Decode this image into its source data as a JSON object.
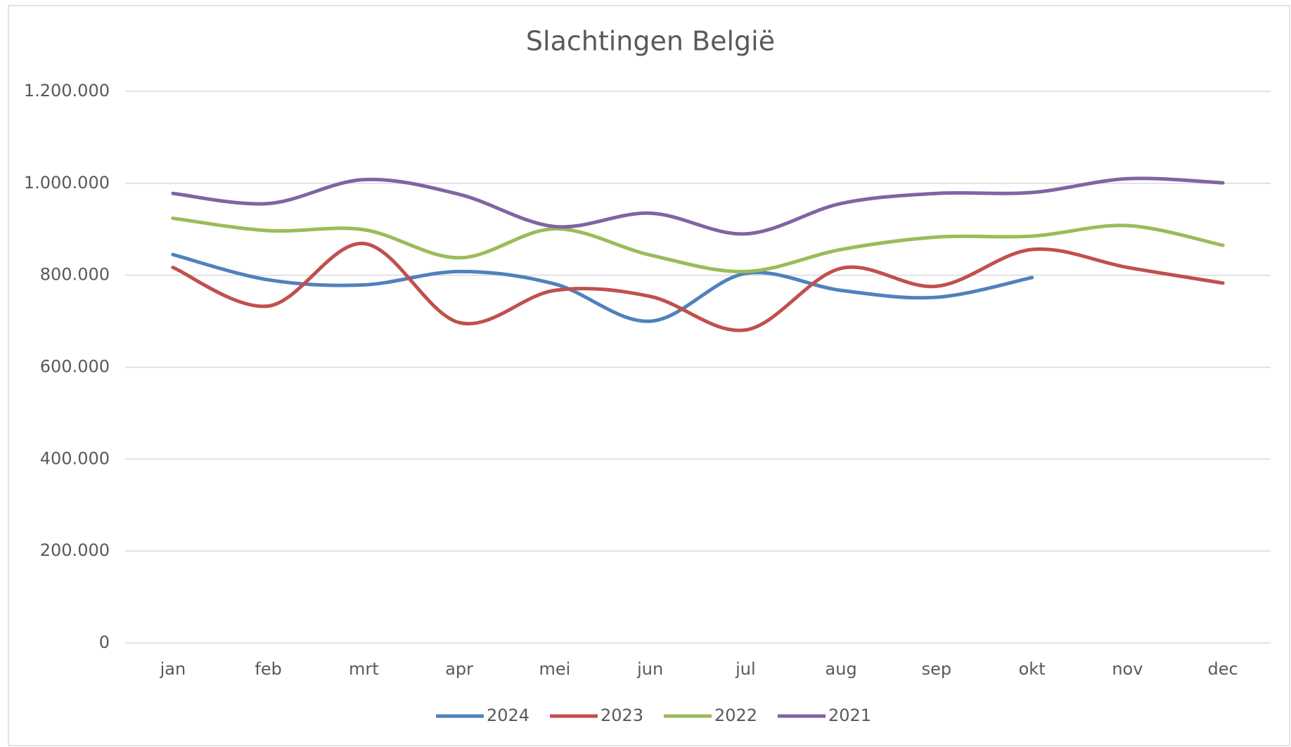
{
  "chart_data": {
    "type": "line",
    "title": "Slachtingen België",
    "categories": [
      "jan",
      "feb",
      "mrt",
      "apr",
      "mei",
      "jun",
      "jul",
      "aug",
      "sep",
      "okt",
      "nov",
      "dec"
    ],
    "series": [
      {
        "name": "2024",
        "color": "#4f81bd",
        "values": [
          845000,
          790000,
          779000,
          808000,
          781000,
          700000,
          804000,
          767000,
          752000,
          795000,
          null,
          null
        ]
      },
      {
        "name": "2023",
        "color": "#c0504d",
        "values": [
          817000,
          733000,
          869000,
          697000,
          767000,
          754000,
          681000,
          815000,
          776000,
          856000,
          817000,
          783000
        ]
      },
      {
        "name": "2022",
        "color": "#9bbb59",
        "values": [
          924000,
          897000,
          899000,
          838000,
          901000,
          844000,
          808000,
          856000,
          883000,
          885000,
          908000,
          865000
        ]
      },
      {
        "name": "2021",
        "color": "#8064a2",
        "values": [
          978000,
          956000,
          1008000,
          976000,
          906000,
          935000,
          890000,
          956000,
          978000,
          980000,
          1010000,
          1001000
        ]
      }
    ],
    "ylim": [
      0,
      1200000
    ],
    "yticks": [
      0,
      {
        "value": 200000,
        "label": "200.000"
      },
      {
        "value": 400000,
        "label": "400.000"
      },
      {
        "value": 600000,
        "label": "600.000"
      },
      {
        "value": 800000,
        "label": "800.000"
      },
      {
        "value": 1000000,
        "label": "1.000.000"
      },
      {
        "value": 1200000,
        "label": "1.200.000"
      }
    ],
    "grid": true,
    "smooth": true,
    "legend": "bottom"
  }
}
